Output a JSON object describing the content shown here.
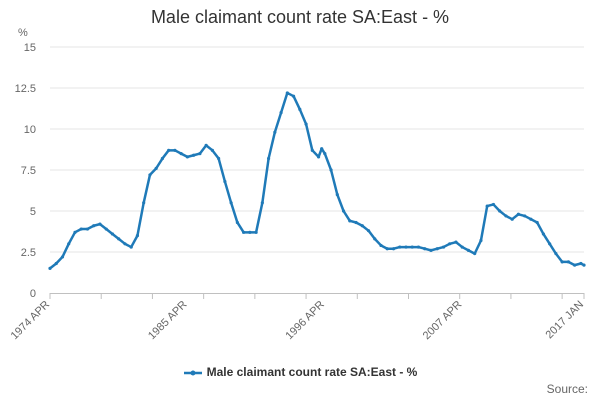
{
  "chart_data": {
    "type": "line",
    "title": "Male claimant count rate SA:East - %",
    "ylabel": "%",
    "xlabel": "",
    "ylim": [
      0,
      15
    ],
    "y_ticks": [
      "0",
      "2.5",
      "5",
      "7.5",
      "10",
      "12.5",
      "15"
    ],
    "x_tick_labels": [
      "1974 APR",
      "1985 APR",
      "1996 APR",
      "2007 APR",
      "2017 JAN"
    ],
    "grid": "horizontal",
    "legend_position": "bottom",
    "series": [
      {
        "name": "Male claimant count rate SA:East - %",
        "color": "#1f7ab8",
        "x": [
          1974.25,
          1974.75,
          1975.25,
          1975.75,
          1976.25,
          1976.75,
          1977.25,
          1977.75,
          1978.25,
          1978.75,
          1979.25,
          1979.75,
          1980.25,
          1980.75,
          1981.25,
          1981.75,
          1982.25,
          1982.75,
          1983.25,
          1983.75,
          1984.25,
          1984.75,
          1985.25,
          1985.75,
          1986.25,
          1986.75,
          1987.25,
          1987.75,
          1988.25,
          1988.75,
          1989.25,
          1989.75,
          1990.25,
          1990.75,
          1991.25,
          1991.75,
          1992.25,
          1992.75,
          1993.25,
          1993.75,
          1994.25,
          1994.75,
          1995.25,
          1995.75,
          1996.0,
          1996.25,
          1996.75,
          1997.25,
          1997.75,
          1998.25,
          1998.75,
          1999.25,
          1999.75,
          2000.25,
          2000.75,
          2001.25,
          2001.75,
          2002.25,
          2002.75,
          2003.25,
          2003.75,
          2004.25,
          2004.75,
          2005.25,
          2005.75,
          2006.25,
          2006.75,
          2007.25,
          2007.75,
          2008.25,
          2008.75,
          2009.25,
          2009.75,
          2010.25,
          2010.75,
          2011.25,
          2011.75,
          2012.25,
          2012.75,
          2013.25,
          2013.75,
          2014.25,
          2014.75,
          2015.25,
          2015.75,
          2016.25,
          2016.75,
          2017.0
        ],
        "values": [
          1.5,
          1.8,
          2.2,
          3.0,
          3.7,
          3.9,
          3.9,
          4.1,
          4.2,
          3.9,
          3.6,
          3.3,
          3.0,
          2.8,
          3.5,
          5.5,
          7.2,
          7.6,
          8.2,
          8.7,
          8.7,
          8.5,
          8.3,
          8.4,
          8.5,
          9.0,
          8.7,
          8.2,
          6.8,
          5.5,
          4.3,
          3.7,
          3.7,
          3.7,
          5.5,
          8.2,
          9.8,
          11.0,
          12.2,
          12.0,
          11.2,
          10.3,
          8.7,
          8.3,
          8.8,
          8.5,
          7.5,
          6.0,
          5.0,
          4.4,
          4.3,
          4.1,
          3.8,
          3.3,
          2.9,
          2.7,
          2.7,
          2.8,
          2.8,
          2.8,
          2.8,
          2.7,
          2.6,
          2.7,
          2.8,
          3.0,
          3.1,
          2.8,
          2.6,
          2.4,
          3.2,
          5.3,
          5.4,
          5.0,
          4.7,
          4.5,
          4.8,
          4.7,
          4.5,
          4.3,
          3.6,
          3.0,
          2.4,
          1.9,
          1.9,
          1.7,
          1.8,
          1.7
        ]
      }
    ]
  },
  "source_label": "Source:"
}
